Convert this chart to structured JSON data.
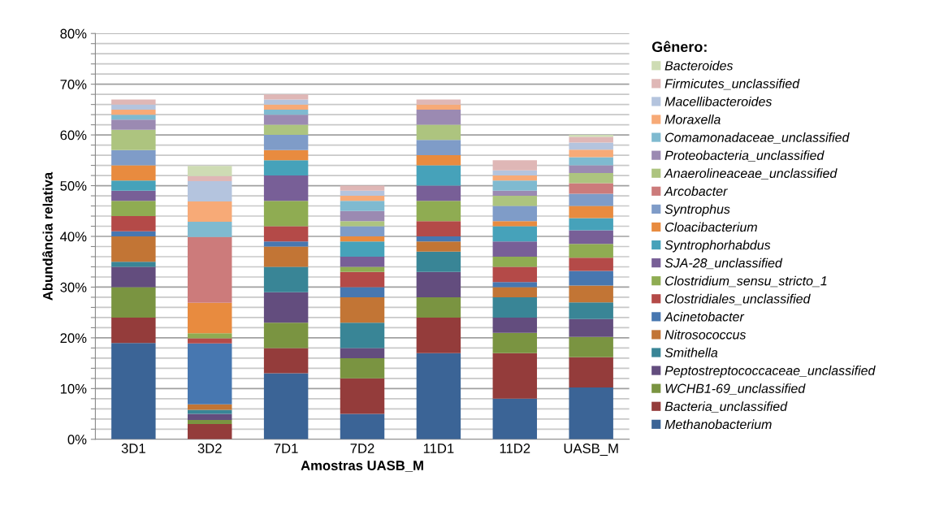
{
  "chart_data": {
    "type": "bar",
    "stacked": true,
    "xlabel": "Amostras UASB_M",
    "ylabel": "Abundância relativa",
    "legend_title": "Gênero:",
    "legend": "right",
    "grid": "y",
    "categories": [
      "3D1",
      "3D2",
      "7D1",
      "7D2",
      "11D1",
      "11D2",
      "UASB_M"
    ],
    "ylim": [
      0,
      80
    ],
    "yticks": [
      {
        "value": 0,
        "label": "0%"
      },
      {
        "value": 2,
        "label": null
      },
      {
        "value": 4,
        "label": null
      },
      {
        "value": 6,
        "label": null
      },
      {
        "value": 8,
        "label": null
      },
      {
        "value": 10,
        "label": "10%"
      },
      {
        "value": 12,
        "label": null
      },
      {
        "value": 14,
        "label": null
      },
      {
        "value": 16,
        "label": null
      },
      {
        "value": 18,
        "label": null
      },
      {
        "value": 20,
        "label": "20%"
      },
      {
        "value": 22,
        "label": null
      },
      {
        "value": 24,
        "label": null
      },
      {
        "value": 26,
        "label": null
      },
      {
        "value": 28,
        "label": null
      },
      {
        "value": 30,
        "label": "30%"
      },
      {
        "value": 32,
        "label": null
      },
      {
        "value": 34,
        "label": null
      },
      {
        "value": 36,
        "label": null
      },
      {
        "value": 38,
        "label": null
      },
      {
        "value": 40,
        "label": "40%"
      },
      {
        "value": 42,
        "label": null
      },
      {
        "value": 44,
        "label": null
      },
      {
        "value": 46,
        "label": null
      },
      {
        "value": 48,
        "label": null
      },
      {
        "value": 50,
        "label": "50%"
      },
      {
        "value": 52,
        "label": null
      },
      {
        "value": 54,
        "label": null
      },
      {
        "value": 56,
        "label": null
      },
      {
        "value": 58,
        "label": null
      },
      {
        "value": 60,
        "label": "60%"
      },
      {
        "value": 62,
        "label": null
      },
      {
        "value": 64,
        "label": null
      },
      {
        "value": 66,
        "label": null
      },
      {
        "value": 68,
        "label": null
      },
      {
        "value": 70,
        "label": "70%"
      },
      {
        "value": 72,
        "label": null
      },
      {
        "value": 74,
        "label": null
      },
      {
        "value": 76,
        "label": null
      },
      {
        "value": 78,
        "label": null
      },
      {
        "value": 80,
        "label": "80%"
      }
    ],
    "series": [
      {
        "name": "Methanobacterium",
        "color": "#3b6496",
        "values": [
          19,
          0,
          13,
          5,
          17,
          8,
          10.2
        ]
      },
      {
        "name": "Bacteria_unclassified",
        "color": "#943c3b",
        "values": [
          5,
          3,
          5,
          7,
          7,
          9,
          6
        ]
      },
      {
        "name": "WCHB1-69_unclassified",
        "color": "#7a9441",
        "values": [
          6,
          0.8,
          5,
          4,
          4,
          4,
          4
        ]
      },
      {
        "name": "Peptostreptococcaceae_unclassified",
        "color": "#634d7e",
        "values": [
          4,
          1.2,
          6,
          2,
          5,
          3,
          3.5
        ]
      },
      {
        "name": "Smithella",
        "color": "#398596",
        "values": [
          1,
          0.8,
          5,
          5,
          4,
          4,
          3.3
        ]
      },
      {
        "name": "Nitrosococcus",
        "color": "#c27535",
        "values": [
          5,
          1.1,
          4,
          5,
          2,
          2,
          3.3
        ]
      },
      {
        "name": "Acinetobacter",
        "color": "#4777b0",
        "values": [
          1,
          12,
          1,
          2,
          1,
          1,
          2.9
        ]
      },
      {
        "name": "Clostridiales_unclassified",
        "color": "#b44a48",
        "values": [
          3,
          1,
          3,
          3,
          3,
          3,
          2.6
        ]
      },
      {
        "name": "Clostridium_sensu_stricto_1",
        "color": "#8fac52",
        "values": [
          3,
          1,
          5,
          1,
          4,
          2,
          2.7
        ]
      },
      {
        "name": "SJA-28_unclassified",
        "color": "#785f97",
        "values": [
          2,
          0,
          5,
          2,
          3,
          3,
          2.7
        ]
      },
      {
        "name": "Syntrophorhabdus",
        "color": "#46a2ba",
        "values": [
          2,
          0,
          3,
          3,
          4,
          3,
          2.4
        ]
      },
      {
        "name": "Cloacibacterium",
        "color": "#e88b3f",
        "values": [
          3,
          6,
          2,
          1,
          2,
          1,
          2.4
        ]
      },
      {
        "name": "Syntrophus",
        "color": "#7f9cc8",
        "values": [
          3,
          0,
          3,
          2,
          3,
          3,
          2.4
        ]
      },
      {
        "name": "Arcobacter",
        "color": "#cc7b7b",
        "values": [
          0,
          13,
          0,
          0,
          0,
          0,
          2.1
        ]
      },
      {
        "name": "Anaerolineaceae_unclassified",
        "color": "#adc47f",
        "values": [
          4,
          0,
          2,
          1,
          3,
          2,
          2
        ]
      },
      {
        "name": "Proteobacteria_unclassified",
        "color": "#9b8ab2",
        "values": [
          2,
          0,
          2,
          2,
          3,
          1,
          1.5
        ]
      },
      {
        "name": "Comamonadaceae_unclassified",
        "color": "#7fbad0",
        "values": [
          1,
          3,
          1,
          2,
          0,
          2,
          1.6
        ]
      },
      {
        "name": "Moraxella",
        "color": "#f7aa77",
        "values": [
          1,
          4,
          1,
          1,
          1,
          1,
          1.5
        ]
      },
      {
        "name": "Macellibacteroides",
        "color": "#b4c4de",
        "values": [
          1,
          4,
          1,
          1,
          0,
          1,
          1.4
        ]
      },
      {
        "name": "Firmicutes_unclassified",
        "color": "#dfb7b6",
        "values": [
          1,
          1,
          1,
          1,
          1,
          2,
          1.1
        ]
      },
      {
        "name": "Bacteroides",
        "color": "#cedcb4",
        "values": [
          0,
          2,
          0,
          0,
          0,
          0,
          0.4
        ]
      }
    ]
  }
}
